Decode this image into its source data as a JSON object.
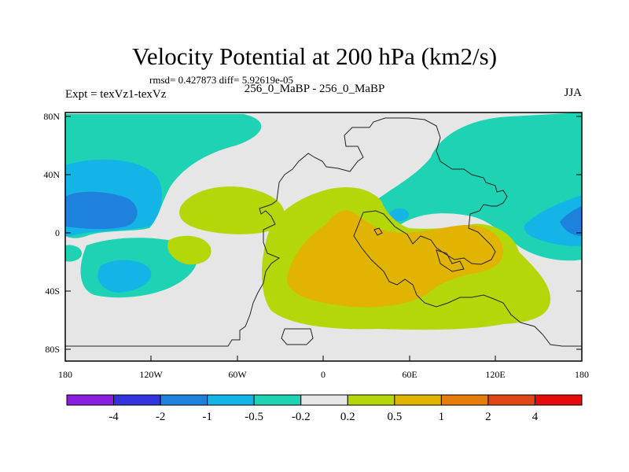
{
  "title": "Velocity Potential at 200 hPa (km2/s)",
  "stats": "rmsd= 0.427873  diff= 5.92619e-05",
  "left_label": "Expt = texVz1-texVz",
  "center_label": "256_0_MaBP - 256_0_MaBP",
  "right_label": "JJA",
  "lat_ticks": [
    "80N",
    "40N",
    "0",
    "40S",
    "80S"
  ],
  "lon_ticks": [
    "180",
    "120W",
    "60W",
    "0",
    "60E",
    "120E",
    "180"
  ],
  "colorbar": {
    "labels": [
      "-4",
      "-2",
      "-1",
      "-0.5",
      "-0.2",
      "0.2",
      "0.5",
      "1",
      "2",
      "4"
    ],
    "colors": [
      "#8a1ee0",
      "#3232dc",
      "#1e82dc",
      "#14b4e6",
      "#1ed2b4",
      "#e6e6e6",
      "#b4d70a",
      "#e0b400",
      "#e67d0a",
      "#e04614",
      "#e60a0a"
    ]
  },
  "colors": {
    "background_neutral": "#e6e6e6",
    "neg_0_5_to_0_2": "#1ed2b4",
    "neg_1_to_0_5": "#14b4e6",
    "neg_2_to_1": "#1e82dc",
    "pos_0_2_to_0_5": "#b4d70a",
    "pos_0_5_to_1": "#e0b400"
  }
}
